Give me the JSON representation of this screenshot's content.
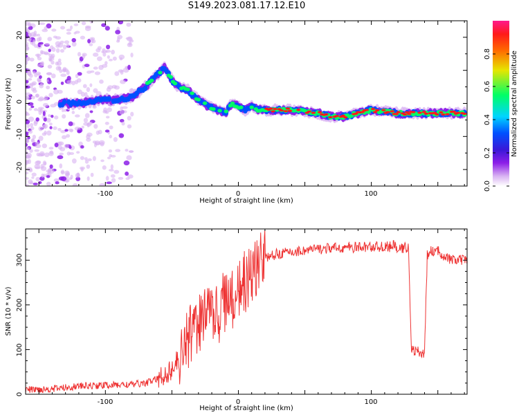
{
  "figure_title": "S149.2023.081.17.12.E10",
  "colors": {
    "snr_line": "#ee3333",
    "frame": "#000000",
    "background": "#ffffff",
    "colormap": [
      "#ffffff",
      "#d9b3f2",
      "#8c1ee8",
      "#3a18d8",
      "#0050ff",
      "#00d4ff",
      "#00ff66",
      "#e6e600",
      "#ff6a00",
      "#ff1a1a",
      "#ff1a8c"
    ]
  },
  "chart_data": [
    {
      "type": "heatmap",
      "title": "",
      "xlabel": "Height of straight line (km)",
      "ylabel": "Frequency (Hz)",
      "xlim": [
        -160,
        172
      ],
      "ylim": [
        -25,
        25
      ],
      "x_ticks": [
        "-100",
        "0",
        "100"
      ],
      "y_ticks": [
        "-20",
        "-10",
        "0",
        "10",
        "20"
      ],
      "colorbar": {
        "label": "Normalized spectral amplitude",
        "range": [
          0,
          1
        ],
        "ticks": [
          "0.0",
          "0.2",
          "0.4",
          "0.6",
          "0.8"
        ]
      },
      "ridge_frequency_hz": {
        "x": [
          -134,
          -120,
          -105,
          -90,
          -80,
          -70,
          -60,
          -55,
          -50,
          -45,
          -38,
          -30,
          -22,
          -15,
          -10,
          -5,
          0,
          5,
          10,
          15,
          20,
          40,
          60,
          70,
          80,
          90,
          100,
          120,
          140,
          160,
          170
        ],
        "y": [
          0,
          0,
          1,
          1,
          2,
          5,
          9,
          11,
          7,
          5,
          4,
          1,
          -1,
          -2,
          -3,
          0,
          -1,
          -2,
          -1,
          -2,
          -2,
          -2,
          -3,
          -4,
          -4,
          -3,
          -2,
          -3,
          -3,
          -3,
          -3
        ]
      }
    },
    {
      "type": "line",
      "title": "",
      "xlabel": "Height of straight line (km)",
      "ylabel": "SNR (10 * v/v)",
      "xlim": [
        -160,
        172
      ],
      "ylim": [
        0,
        370
      ],
      "x_ticks": [
        "-100",
        "0",
        "100"
      ],
      "y_ticks": [
        "0",
        "100",
        "200",
        "300"
      ],
      "snr_profile": {
        "x": [
          -160,
          -140,
          -120,
          -100,
          -80,
          -70,
          -60,
          -50,
          -45,
          -40,
          -35,
          -30,
          -25,
          -20,
          -15,
          -10,
          -5,
          0,
          5,
          10,
          15,
          20,
          25,
          30,
          40,
          50,
          60,
          80,
          100,
          115,
          118,
          120,
          122,
          125,
          128,
          130,
          135,
          140,
          142,
          145,
          150,
          160,
          170
        ],
        "y": [
          10,
          12,
          18,
          20,
          22,
          25,
          35,
          55,
          80,
          110,
          145,
          165,
          170,
          175,
          180,
          200,
          215,
          225,
          250,
          270,
          290,
          305,
          310,
          315,
          318,
          322,
          325,
          328,
          330,
          330,
          335,
          320,
          325,
          328,
          330,
          100,
          95,
          90,
          310,
          320,
          320,
          300,
          300
        ]
      }
    }
  ]
}
